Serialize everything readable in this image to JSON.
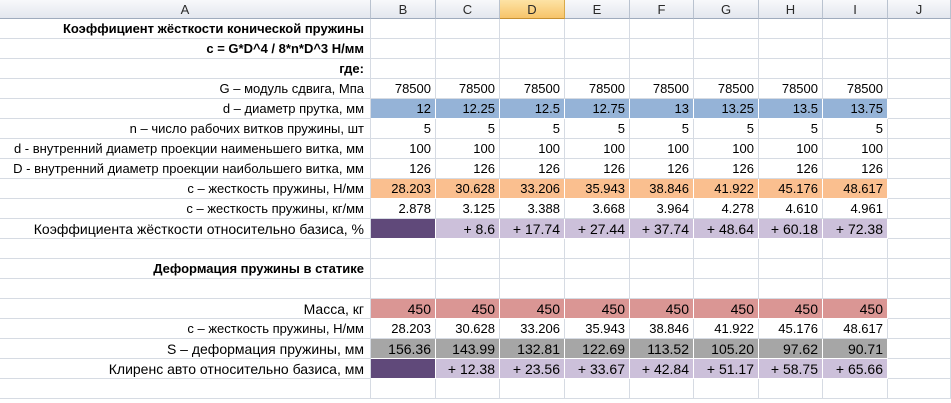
{
  "columns": [
    "A",
    "B",
    "C",
    "D",
    "E",
    "F",
    "G",
    "H",
    "I",
    "J"
  ],
  "selected_column": "D",
  "colors": {
    "diameter": "#95b3d7",
    "stiffness": "#fabf8f",
    "relative": "#ccc0da",
    "base_relative": "#60497a",
    "mass": "#da9694",
    "deformation": "#a6a6a6"
  },
  "rows": [
    {
      "label": "Коэффициент жёсткости конической пружины",
      "bold": true,
      "values": []
    },
    {
      "label": "c = G*D^4 / 8*n*D^3 Н/мм",
      "bold": true,
      "values": []
    },
    {
      "label": "где:",
      "bold": true,
      "values": []
    },
    {
      "label": "G – модуль сдвига, Мпа",
      "values": [
        "78500",
        "78500",
        "78500",
        "78500",
        "78500",
        "78500",
        "78500",
        "78500"
      ]
    },
    {
      "label": "d – диаметр прутка, мм",
      "fill": "diameter",
      "values": [
        "12",
        "12.25",
        "12.5",
        "12.75",
        "13",
        "13.25",
        "13.5",
        "13.75"
      ]
    },
    {
      "label": "n – число рабочих витков пружины, шт",
      "values": [
        "5",
        "5",
        "5",
        "5",
        "5",
        "5",
        "5",
        "5"
      ]
    },
    {
      "label": "d -  внутренний диаметр проекции наименьшего витка, мм",
      "values": [
        "100",
        "100",
        "100",
        "100",
        "100",
        "100",
        "100",
        "100"
      ]
    },
    {
      "label": "D -  внутренний диаметр проекции наибольшего витка, мм",
      "values": [
        "126",
        "126",
        "126",
        "126",
        "126",
        "126",
        "126",
        "126"
      ]
    },
    {
      "label": "c – жесткость пружины, Н/мм",
      "fill": "stiffness",
      "values": [
        "28.203",
        "30.628",
        "33.206",
        "35.943",
        "38.846",
        "41.922",
        "45.176",
        "48.617"
      ]
    },
    {
      "label": "c – жесткость пружины, кг/мм",
      "values": [
        "2.878",
        "3.125",
        "3.388",
        "3.668",
        "3.964",
        "4.278",
        "4.610",
        "4.961"
      ]
    },
    {
      "label": "Коэффициента жёсткости относительно базиса, %",
      "fill": "relative",
      "base_fill": "base_relative",
      "big": true,
      "values": [
        "",
        "+ 8.6",
        "+ 17.74",
        "+ 27.44",
        "+ 37.74",
        "+ 48.64",
        "+ 60.18",
        "+ 72.38"
      ]
    },
    {
      "label": "",
      "values": []
    },
    {
      "label": "Деформация пружины в статике",
      "bold": true,
      "values": []
    },
    {
      "label": "",
      "values": []
    },
    {
      "label": "Масса, кг",
      "fill": "mass",
      "big": true,
      "values": [
        "450",
        "450",
        "450",
        "450",
        "450",
        "450",
        "450",
        "450"
      ]
    },
    {
      "label": "c – жесткость пружины, Н/мм",
      "values": [
        "28.203",
        "30.628",
        "33.206",
        "35.943",
        "38.846",
        "41.922",
        "45.176",
        "48.617"
      ]
    },
    {
      "label": "S – деформация пружины, мм",
      "fill": "deformation",
      "big": true,
      "values": [
        "156.36",
        "143.99",
        "132.81",
        "122.69",
        "113.52",
        "105.20",
        "97.62",
        "90.71"
      ]
    },
    {
      "label": "Клиренс авто относительно базиса, мм",
      "fill": "relative",
      "base_fill": "base_relative",
      "big": true,
      "values": [
        "",
        "+ 12.38",
        "+ 23.56",
        "+ 33.67",
        "+ 42.84",
        "+ 51.17",
        "+ 58.75",
        "+ 65.66"
      ]
    },
    {
      "label": "",
      "values": []
    }
  ]
}
